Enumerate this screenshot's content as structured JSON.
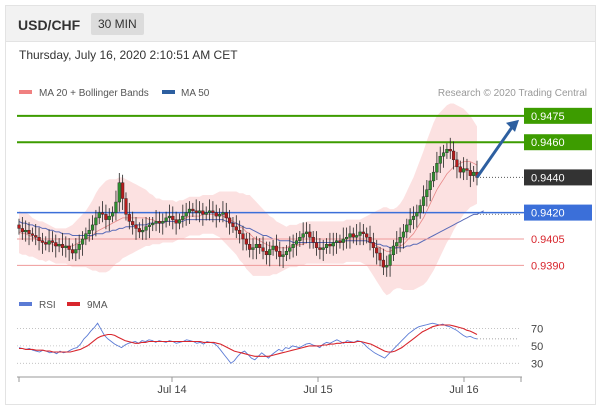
{
  "header": {
    "pair": "USD/CHF",
    "timeframe": "30 MIN"
  },
  "datetime": "Thursday, July 16, 2020 2:10:51 AM CET",
  "credit": "Research © 2020 Trading Central",
  "colors": {
    "green": "#3d9c00",
    "blue": "#3b6fd9",
    "red": "#d8262d",
    "dark": "#333333",
    "band": "#f9c9c9",
    "ma20": "#e88a8a",
    "ma50": "#5a6bb8",
    "arrow": "#2d5fa0"
  },
  "chart_data": [
    {
      "type": "candlestick",
      "title": "",
      "legend": [
        {
          "name": "MA 20 + Bollinger Bands",
          "color": "#f08080"
        },
        {
          "name": "MA 50",
          "color": "#2d5fa0"
        }
      ],
      "legend_placement": "top-left",
      "ylim": [
        0.9376,
        0.9484
      ],
      "x_ticks": [
        "Jul 14",
        "Jul 15",
        "Jul 16"
      ],
      "levels": [
        {
          "value": 0.9475,
          "label": "0.9475",
          "kind": "resistance",
          "style": "green-box"
        },
        {
          "value": 0.946,
          "label": "0.9460",
          "kind": "resistance",
          "style": "green-box"
        },
        {
          "value": 0.944,
          "label": "0.9440",
          "kind": "last-price",
          "style": "dark-box"
        },
        {
          "value": 0.942,
          "label": "0.9420",
          "kind": "pivot",
          "style": "blue-box"
        },
        {
          "value": 0.9405,
          "label": "0.9405",
          "kind": "support",
          "style": "red-text"
        },
        {
          "value": 0.939,
          "label": "0.9390",
          "kind": "support",
          "style": "red-text"
        }
      ],
      "closes": [
        0.9411,
        0.9409,
        0.941,
        0.9408,
        0.9407,
        0.9406,
        0.9404,
        0.9403,
        0.9402,
        0.9404,
        0.9403,
        0.9401,
        0.9402,
        0.94,
        0.9401,
        0.9399,
        0.9397,
        0.9399,
        0.9402,
        0.9405,
        0.9408,
        0.941,
        0.9413,
        0.9417,
        0.942,
        0.9419,
        0.9416,
        0.9418,
        0.942,
        0.9426,
        0.9437,
        0.9428,
        0.9419,
        0.9415,
        0.9413,
        0.9411,
        0.9409,
        0.941,
        0.9412,
        0.9413,
        0.9414,
        0.9415,
        0.9414,
        0.9415,
        0.9417,
        0.9418,
        0.9416,
        0.9414,
        0.9416,
        0.9418,
        0.942,
        0.9422,
        0.9421,
        0.942,
        0.9421,
        0.9419,
        0.942,
        0.9421,
        0.942,
        0.9418,
        0.9419,
        0.942,
        0.9417,
        0.9414,
        0.9412,
        0.941,
        0.9408,
        0.9405,
        0.9402,
        0.9399,
        0.94,
        0.9402,
        0.94,
        0.9398,
        0.9396,
        0.9399,
        0.9401,
        0.9398,
        0.9395,
        0.9396,
        0.9398,
        0.94,
        0.9402,
        0.9404,
        0.9406,
        0.9408,
        0.9409,
        0.9406,
        0.9403,
        0.94,
        0.9399,
        0.94,
        0.9402,
        0.9401,
        0.9403,
        0.9404,
        0.9403,
        0.9405,
        0.9406,
        0.9408,
        0.9406,
        0.9407,
        0.9409,
        0.9408,
        0.9406,
        0.9403,
        0.94,
        0.9397,
        0.9393,
        0.9389,
        0.939,
        0.9396,
        0.9401,
        0.9403,
        0.9406,
        0.9409,
        0.9413,
        0.9416,
        0.9418,
        0.942,
        0.9424,
        0.9429,
        0.9433,
        0.9438,
        0.9443,
        0.9448,
        0.9452,
        0.9454,
        0.9456,
        0.9455,
        0.945,
        0.9446,
        0.9443,
        0.9445,
        0.9444,
        0.9441,
        0.9443,
        0.944
      ],
      "ma20": [
        0.9409,
        0.9408,
        0.9408,
        0.9407,
        0.9406,
        0.9405,
        0.9404,
        0.9404,
        0.9403,
        0.9403,
        0.9402,
        0.9401,
        0.9401,
        0.9401,
        0.9401,
        0.9401,
        0.9401,
        0.9402,
        0.9403,
        0.9404,
        0.9405,
        0.9406,
        0.9407,
        0.9409,
        0.941,
        0.9411,
        0.9412,
        0.9413,
        0.9414,
        0.9415,
        0.9416,
        0.9417,
        0.9417,
        0.9417,
        0.9417,
        0.9417,
        0.9417,
        0.9417,
        0.9417,
        0.9416,
        0.9416,
        0.9415,
        0.9415,
        0.9415,
        0.9415,
        0.9415,
        0.9415,
        0.9415,
        0.9416,
        0.9416,
        0.9417,
        0.9418,
        0.9418,
        0.9418,
        0.9418,
        0.9419,
        0.9419,
        0.9419,
        0.9419,
        0.9419,
        0.9419,
        0.9418,
        0.9417,
        0.9416,
        0.9415,
        0.9414,
        0.9412,
        0.9411,
        0.9409,
        0.9408,
        0.9406,
        0.9405,
        0.9404,
        0.9403,
        0.9402,
        0.9401,
        0.9401,
        0.94,
        0.94,
        0.94,
        0.94,
        0.9401,
        0.9401,
        0.9401,
        0.9402,
        0.9402,
        0.9403,
        0.9403,
        0.9403,
        0.9403,
        0.9403,
        0.9403,
        0.9403,
        0.9403,
        0.9403,
        0.9403,
        0.9403,
        0.9403,
        0.9404,
        0.9404,
        0.9404,
        0.9404,
        0.9404,
        0.9404,
        0.9404,
        0.9403,
        0.9402,
        0.9401,
        0.94,
        0.9399,
        0.9398,
        0.9398,
        0.9399,
        0.94,
        0.9401,
        0.9402,
        0.9404,
        0.9406,
        0.9408,
        0.9411,
        0.9414,
        0.9417,
        0.9421,
        0.9425,
        0.9429,
        0.9433,
        0.9436,
        0.9439,
        0.9442,
        0.9444,
        0.9446,
        0.9447,
        0.9448,
        0.9449,
        0.9449,
        0.9449,
        0.9448,
        0.9447
      ],
      "ma50": [
        0.9415,
        0.9414,
        0.9414,
        0.9413,
        0.9413,
        0.9412,
        0.9412,
        0.9411,
        0.9411,
        0.941,
        0.941,
        0.9409,
        0.9409,
        0.9408,
        0.9408,
        0.9408,
        0.9407,
        0.9407,
        0.9407,
        0.9407,
        0.9407,
        0.9407,
        0.9407,
        0.9408,
        0.9408,
        0.9408,
        0.9409,
        0.9409,
        0.941,
        0.941,
        0.9411,
        0.9411,
        0.9412,
        0.9412,
        0.9412,
        0.9413,
        0.9413,
        0.9413,
        0.9413,
        0.9414,
        0.9414,
        0.9414,
        0.9414,
        0.9414,
        0.9415,
        0.9415,
        0.9415,
        0.9415,
        0.9415,
        0.9415,
        0.9416,
        0.9416,
        0.9416,
        0.9416,
        0.9416,
        0.9416,
        0.9416,
        0.9416,
        0.9416,
        0.9416,
        0.9416,
        0.9416,
        0.9415,
        0.9415,
        0.9414,
        0.9414,
        0.9413,
        0.9412,
        0.9411,
        0.9411,
        0.941,
        0.9409,
        0.9408,
        0.9407,
        0.9407,
        0.9406,
        0.9405,
        0.9405,
        0.9404,
        0.9404,
        0.9404,
        0.9404,
        0.9403,
        0.9403,
        0.9403,
        0.9403,
        0.9403,
        0.9403,
        0.9403,
        0.9403,
        0.9403,
        0.9403,
        0.9403,
        0.9403,
        0.9403,
        0.9403,
        0.9403,
        0.9404,
        0.9404,
        0.9404,
        0.9404,
        0.9404,
        0.9404,
        0.9404,
        0.9404,
        0.9403,
        0.9403,
        0.9402,
        0.9402,
        0.9401,
        0.9401,
        0.94,
        0.94,
        0.94,
        0.94,
        0.94,
        0.9401,
        0.9401,
        0.9402,
        0.9402,
        0.9403,
        0.9404,
        0.9405,
        0.9406,
        0.9407,
        0.9408,
        0.9409,
        0.941,
        0.9411,
        0.9412,
        0.9413,
        0.9414,
        0.9415,
        0.9416,
        0.9417,
        0.9418,
        0.9419,
        0.9419,
        0.942,
        0.9421
      ],
      "band_width": [
        0.0012,
        0.0012,
        0.0012,
        0.0012,
        0.0011,
        0.0011,
        0.0011,
        0.0011,
        0.0011,
        0.001,
        0.001,
        0.001,
        0.001,
        0.001,
        0.001,
        0.0011,
        0.0012,
        0.0013,
        0.0014,
        0.0015,
        0.0016,
        0.0018,
        0.002,
        0.0022,
        0.0024,
        0.0025,
        0.0026,
        0.0026,
        0.0025,
        0.0024,
        0.0024,
        0.0023,
        0.0022,
        0.0021,
        0.002,
        0.0019,
        0.0018,
        0.0017,
        0.0016,
        0.0015,
        0.0014,
        0.0013,
        0.0013,
        0.0012,
        0.0012,
        0.0012,
        0.0012,
        0.0011,
        0.0011,
        0.0011,
        0.0011,
        0.0011,
        0.0011,
        0.0011,
        0.0011,
        0.0011,
        0.0011,
        0.0011,
        0.0011,
        0.0012,
        0.0013,
        0.0014,
        0.0015,
        0.0016,
        0.0017,
        0.0018,
        0.0019,
        0.002,
        0.0021,
        0.0022,
        0.0022,
        0.0021,
        0.002,
        0.0019,
        0.0018,
        0.0017,
        0.0016,
        0.0015,
        0.0014,
        0.0013,
        0.0012,
        0.0012,
        0.0012,
        0.0012,
        0.0012,
        0.0012,
        0.0012,
        0.0012,
        0.0012,
        0.0012,
        0.0012,
        0.0012,
        0.0012,
        0.0012,
        0.0012,
        0.0012,
        0.0012,
        0.0012,
        0.0012,
        0.0012,
        0.0012,
        0.0012,
        0.0012,
        0.0013,
        0.0014,
        0.0016,
        0.0018,
        0.002,
        0.0022,
        0.0024,
        0.0025,
        0.0024,
        0.0023,
        0.0023,
        0.0024,
        0.0026,
        0.0028,
        0.003,
        0.0032,
        0.0034,
        0.0036,
        0.0038,
        0.004,
        0.0041,
        0.0042,
        0.0042,
        0.0041,
        0.004,
        0.0039,
        0.0038,
        0.0036,
        0.0034,
        0.0032,
        0.003,
        0.0028,
        0.0026,
        0.0024,
        0.0022,
        0.002
      ]
    },
    {
      "type": "line",
      "title": "",
      "legend": [
        {
          "name": "RSI",
          "color": "#5b7bd5"
        },
        {
          "name": "9MA",
          "color": "#d8262d"
        }
      ],
      "ylim": [
        20,
        82
      ],
      "y_ticks": [
        70,
        50,
        30
      ],
      "rsi": [
        48,
        47,
        46,
        47,
        45,
        44,
        43,
        45,
        44,
        42,
        43,
        41,
        44,
        42,
        43,
        45,
        47,
        48,
        52,
        58,
        62,
        67,
        71,
        76,
        69,
        62,
        58,
        55,
        52,
        50,
        48,
        51,
        53,
        54,
        55,
        53,
        56,
        55,
        57,
        56,
        54,
        56,
        55,
        54,
        56,
        55,
        53,
        54,
        55,
        57,
        56,
        55,
        53,
        54,
        52,
        55,
        54,
        53,
        50,
        45,
        40,
        35,
        30,
        33,
        38,
        42,
        44,
        40,
        36,
        34,
        38,
        42,
        39,
        36,
        40,
        43,
        46,
        44,
        48,
        47,
        50,
        49,
        48,
        50,
        52,
        53,
        51,
        50,
        48,
        52,
        54,
        53,
        55,
        57,
        55,
        53,
        56,
        55,
        54,
        56,
        55,
        52,
        48,
        45,
        42,
        40,
        38,
        36,
        40,
        44,
        48,
        52,
        56,
        60,
        64,
        67,
        70,
        72,
        73,
        74,
        75,
        76,
        75,
        74,
        75,
        73,
        72,
        70,
        68,
        65,
        62,
        60,
        61,
        59,
        58
      ],
      "ma9": [
        47,
        47,
        46,
        46,
        46,
        45,
        45,
        45,
        44,
        44,
        43,
        43,
        43,
        43,
        43,
        43,
        44,
        45,
        46,
        48,
        50,
        53,
        56,
        59,
        61,
        62,
        63,
        63,
        62,
        60,
        58,
        56,
        55,
        54,
        53,
        53,
        54,
        54,
        55,
        55,
        55,
        55,
        55,
        55,
        55,
        55,
        55,
        55,
        55,
        55,
        55,
        55,
        55,
        55,
        54,
        54,
        54,
        54,
        53,
        52,
        50,
        48,
        46,
        44,
        43,
        42,
        41,
        40,
        39,
        38,
        38,
        38,
        38,
        38,
        39,
        40,
        41,
        42,
        43,
        44,
        45,
        46,
        47,
        48,
        49,
        50,
        50,
        50,
        50,
        51,
        51,
        52,
        52,
        53,
        53,
        54,
        54,
        54,
        54,
        55,
        55,
        54,
        53,
        52,
        50,
        48,
        46,
        44,
        43,
        43,
        44,
        46,
        48,
        51,
        54,
        57,
        60,
        63,
        66,
        68,
        70,
        72,
        73,
        74,
        74,
        74,
        74,
        73,
        72,
        71,
        70,
        68,
        67,
        65,
        63
      ]
    }
  ]
}
